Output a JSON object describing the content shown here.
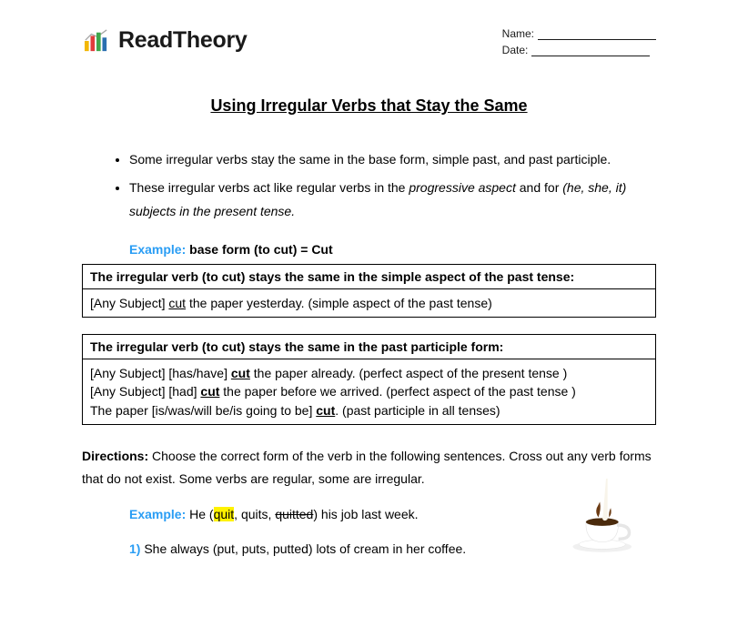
{
  "brand": "ReadTheory",
  "logo": {
    "bars": [
      {
        "x": 0,
        "y": 14,
        "w": 5,
        "h": 12,
        "fill": "#f2b705"
      },
      {
        "x": 7,
        "y": 8,
        "w": 5,
        "h": 18,
        "fill": "#e03c3c"
      },
      {
        "x": 14,
        "y": 4,
        "w": 5,
        "h": 22,
        "fill": "#3fa64b"
      },
      {
        "x": 21,
        "y": 10,
        "w": 5,
        "h": 16,
        "fill": "#2a6fb0"
      }
    ],
    "trend_stroke": "#a6a6a6"
  },
  "fields": {
    "name_label": "Name:",
    "date_label": "Date:"
  },
  "title": "Using Irregular Verbs that Stay the Same",
  "bullets": [
    {
      "plain": "Some irregular verbs stay the same in the base form, simple past, and past participle."
    },
    {
      "parts": [
        {
          "t": "These irregular verbs act like regular verbs in the "
        },
        {
          "t": "progressive aspect",
          "italic": true
        },
        {
          "t": " and for "
        },
        {
          "t": "(he, she, it) subjects in the present tense.",
          "italic": true
        }
      ]
    }
  ],
  "example_label": "Example:",
  "example1_text": "base form (to cut) = Cut",
  "box1": {
    "header": "The irregular verb (to cut) stays the same in the simple aspect of the past tense:",
    "rows": [
      [
        {
          "t": "[Any Subject] "
        },
        {
          "t": "cut",
          "u": true
        },
        {
          "t": " the paper yesterday. (simple aspect of the past tense)"
        }
      ]
    ]
  },
  "box2": {
    "header": "The irregular verb (to cut) stays the same in the past participle form:",
    "rows": [
      [
        {
          "t": "[Any Subject] [has/have] "
        },
        {
          "t": "cut",
          "ub": true
        },
        {
          "t": " the paper already. (perfect aspect of the present tense )"
        }
      ],
      [
        {
          "t": "[Any Subject] [had] "
        },
        {
          "t": "cut",
          "ub": true
        },
        {
          "t": " the paper before we arrived. (perfect aspect of the past tense )"
        }
      ],
      [
        {
          "t": "The paper [is/was/will be/is going to be] "
        },
        {
          "t": "cut",
          "ub": true
        },
        {
          "t": ". (past participle in all tenses)"
        }
      ]
    ]
  },
  "directions_label": "Directions:",
  "directions_text": " Choose the correct form of the verb in the following sentences. Cross out any verb forms that do not exist. Some verbs are regular, some are irregular.",
  "example2": {
    "prefix": " He (",
    "highlight": "quit",
    "mid": ", quits, ",
    "strike": "quitted",
    "suffix": ") his job last week."
  },
  "question1": {
    "num": "1)",
    "text": "  She always (put, puts, putted) lots of cream in her coffee."
  },
  "colors": {
    "accent": "#2a9df4",
    "highlight": "#fff200",
    "text": "#000000",
    "coffee_cup": "#f4f4f4",
    "coffee_liquid": "#6b3a12",
    "milk": "#f8f4ea"
  }
}
